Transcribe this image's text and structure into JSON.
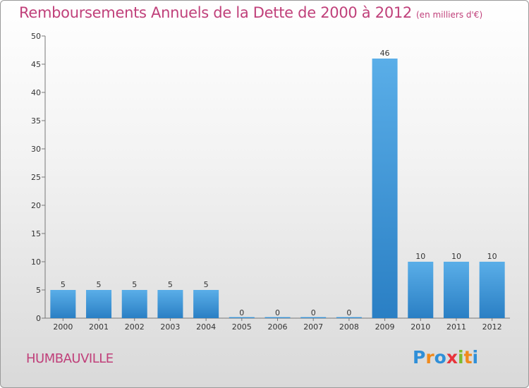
{
  "header": {
    "title": "Remboursements Annuels de la Dette de 2000 à 2012",
    "unit": "(en milliers d'€)"
  },
  "footer": {
    "commune": "HUMBAUVILLE",
    "brand_letters": [
      "P",
      "r",
      "o",
      "x",
      "i",
      "t",
      "i"
    ]
  },
  "colors": {
    "title": "#c0407a",
    "bar_top": "#5aaee8",
    "bar_bottom": "#2a7fc4"
  },
  "chart_data": {
    "type": "bar",
    "categories": [
      "2000",
      "2001",
      "2002",
      "2003",
      "2004",
      "2005",
      "2006",
      "2007",
      "2008",
      "2009",
      "2010",
      "2011",
      "2012"
    ],
    "values": [
      5,
      5,
      5,
      5,
      5,
      0,
      0,
      0,
      0,
      46,
      10,
      10,
      10
    ],
    "ylim": [
      0,
      50
    ],
    "yticks": [
      0,
      5,
      10,
      15,
      20,
      25,
      30,
      35,
      40,
      45,
      50
    ],
    "grid": false
  }
}
